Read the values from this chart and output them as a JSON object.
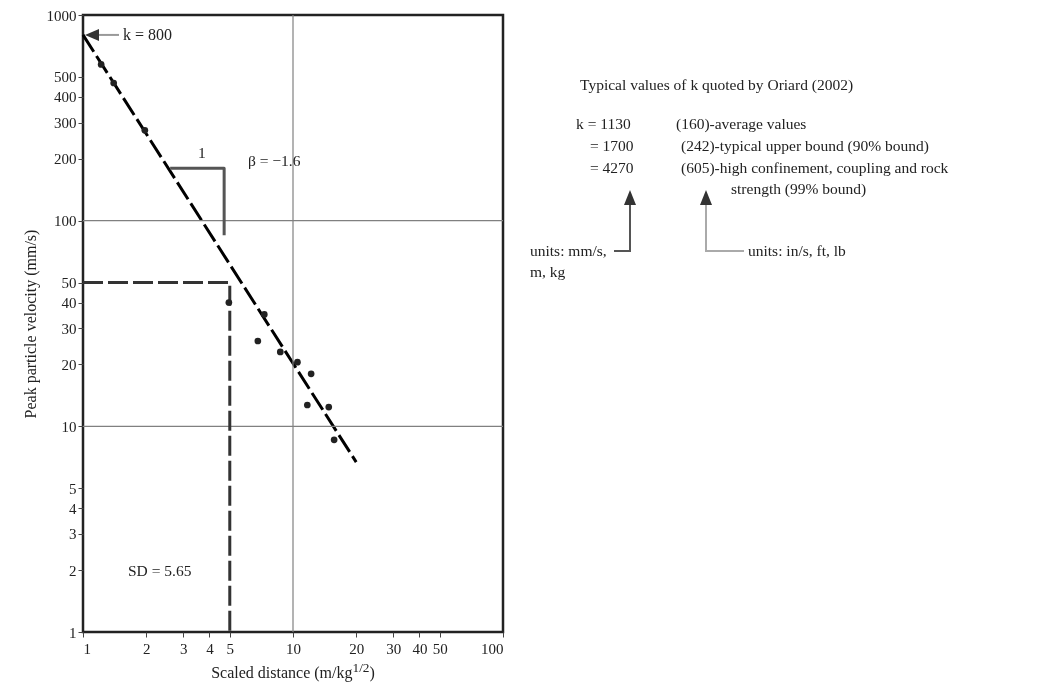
{
  "chart_data": {
    "type": "scatter",
    "xlabel": "Scaled distance (m/kg$^{1/2}$)",
    "ylabel": "Peak particle velocity (mm/s)",
    "log": "xy",
    "grid": false,
    "marker": "circle",
    "xlim": [
      1,
      100
    ],
    "xticks": [
      1,
      2,
      3,
      4,
      5,
      10,
      20,
      30,
      40,
      50,
      100
    ],
    "ylim": [
      1,
      1000
    ],
    "yticks": [
      1,
      2,
      3,
      4,
      5,
      10,
      20,
      30,
      40,
      50,
      100,
      200,
      300,
      400,
      500,
      1000
    ],
    "series": [
      {
        "color": "#222222",
        "x": [
          1.22,
          1.4,
          1.97,
          4.95,
          7.3,
          6.8,
          8.7,
          10.5,
          12.2,
          11.7,
          14.8,
          15.7
        ],
        "values": [
          575,
          467,
          275,
          40,
          35,
          26,
          23,
          20.5,
          18,
          12.7,
          12.4,
          8.6
        ]
      },
      {
        "type": "line",
        "marker": "none",
        "color": "#000000",
        "line_style": "dashed",
        "x": [
          1,
          20
        ],
        "values": [
          800,
          6.7
        ]
      },
      {
        "type": "line",
        "marker": "none",
        "color": "#333333",
        "line_style": "dashed",
        "x": [
          1,
          5,
          5
        ],
        "values": [
          50,
          50,
          1
        ]
      },
      {
        "type": "line",
        "marker": "none",
        "color": "#555555",
        "line_style": "solid",
        "x": [
          2.6,
          4.7,
          4.7
        ],
        "values": [
          180,
          180,
          85
        ]
      }
    ],
    "ref_lines": [
      {
        "axis": "x",
        "value": 10,
        "color": "#808080"
      },
      {
        "axis": "y",
        "value": 100,
        "color": "#808080"
      },
      {
        "axis": "y",
        "value": 10,
        "color": "#808080"
      }
    ],
    "annotations": [
      {
        "text": "k = 800",
        "x": 1,
        "y": 800
      },
      "1",
      "β = −1.6",
      "SD = 5.65",
      "Typical values of k quoted by Oriard (2002)",
      "k = 1130",
      "(160)-average values",
      "= 1700",
      "(242)-typical upper bound (90% bound)",
      "= 4270",
      "(605)-high confinement, coupling and rock strength (99% bound)",
      "units: mm/s, m, kg",
      "units: in/s, ft, lb"
    ]
  }
}
